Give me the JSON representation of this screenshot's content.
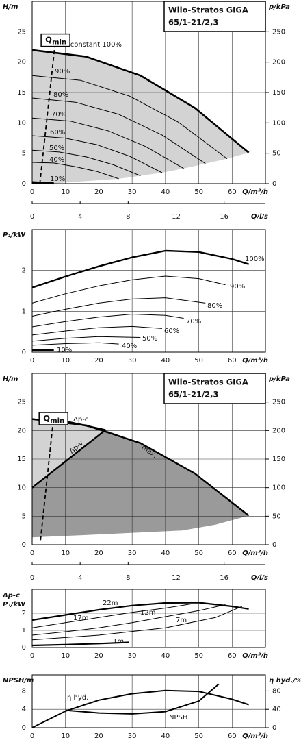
{
  "chart_data": [
    {
      "type": "line",
      "title_lines": [
        "Wilo-Stratos GIGA",
        "65/1-21/2,3"
      ],
      "y_label": "H/m",
      "y2_label": "p/kPa",
      "x_label": "Q/m³/h",
      "x2_label": "Q/l/s",
      "xlim": [
        0,
        70
      ],
      "xticks": [
        0,
        10,
        20,
        30,
        40,
        50,
        60
      ],
      "x2lim": [
        0,
        19.44
      ],
      "x2ticks": [
        0,
        4,
        8,
        12,
        16
      ],
      "ylim": [
        0,
        30
      ],
      "yticks": [
        0,
        5,
        10,
        15,
        20,
        25
      ],
      "y2lim": [
        0,
        300
      ],
      "y2ticks": [
        0,
        50,
        100,
        150,
        200,
        250
      ],
      "grid": true,
      "color": "#000000",
      "region_color": "#d3d3d3",
      "qmin": {
        "label": "Q",
        "sub": "min",
        "x": [
          2.3,
          6.8
        ],
        "values": [
          0,
          22.6
        ]
      },
      "series": [
        {
          "name": "n=constant 100%",
          "x": [
            0,
            16.25,
            32.5,
            48.75,
            65
          ],
          "values": [
            22,
            20.9,
            17.8,
            12.5,
            5.1
          ]
        },
        {
          "name": "90%",
          "x": [
            0,
            14.6,
            29.3,
            43.9,
            58.5
          ],
          "values": [
            17.8,
            17.0,
            14.4,
            10.1,
            4.1
          ]
        },
        {
          "name": "80%",
          "x": [
            0,
            13,
            26,
            39,
            52
          ],
          "values": [
            14.1,
            13.4,
            11.4,
            8.0,
            3.3
          ]
        },
        {
          "name": "70%",
          "x": [
            0,
            11.4,
            22.8,
            34.1,
            45.5
          ],
          "values": [
            10.8,
            10.3,
            8.7,
            6.1,
            2.5
          ]
        },
        {
          "name": "60%",
          "x": [
            0,
            9.8,
            19.5,
            29.3,
            39
          ],
          "values": [
            7.9,
            7.5,
            6.4,
            4.5,
            1.8
          ]
        },
        {
          "name": "50%",
          "x": [
            0,
            8.1,
            16.3,
            24.4,
            32.5
          ],
          "values": [
            5.5,
            5.2,
            4.4,
            3.1,
            1.3
          ]
        },
        {
          "name": "40%",
          "x": [
            0,
            6.5,
            13,
            19.5,
            26
          ],
          "values": [
            3.5,
            3.4,
            2.8,
            2.0,
            0.8
          ]
        },
        {
          "name": "10%",
          "x": [
            0,
            6.5
          ],
          "values": [
            0.22,
            0.05
          ]
        }
      ]
    },
    {
      "type": "line",
      "y_label": "P₁/kW",
      "x_label": "Q/m³/h",
      "xlim": [
        0,
        70
      ],
      "xticks": [
        0,
        10,
        20,
        30,
        40,
        50,
        60
      ],
      "ylim": [
        0,
        3
      ],
      "yticks": [
        0,
        1,
        2
      ],
      "grid": true,
      "color": "#000000",
      "series": [
        {
          "name": "100%",
          "x": [
            0,
            10,
            20,
            30,
            40,
            50,
            60,
            65
          ],
          "values": [
            1.58,
            1.85,
            2.1,
            2.32,
            2.48,
            2.45,
            2.28,
            2.15
          ]
        },
        {
          "name": "90%",
          "x": [
            0,
            10,
            20,
            30,
            40,
            50,
            58
          ],
          "values": [
            1.2,
            1.43,
            1.62,
            1.77,
            1.86,
            1.8,
            1.65
          ]
        },
        {
          "name": "80%",
          "x": [
            0,
            10,
            20,
            30,
            40,
            52
          ],
          "values": [
            0.88,
            1.05,
            1.2,
            1.3,
            1.33,
            1.2
          ]
        },
        {
          "name": "70%",
          "x": [
            0,
            10,
            20,
            30,
            40,
            45.5
          ],
          "values": [
            0.62,
            0.75,
            0.86,
            0.93,
            0.9,
            0.83
          ]
        },
        {
          "name": "60%",
          "x": [
            0,
            10,
            20,
            30,
            39
          ],
          "values": [
            0.42,
            0.52,
            0.6,
            0.63,
            0.58
          ]
        },
        {
          "name": "50%",
          "x": [
            0,
            10,
            20,
            32.5
          ],
          "values": [
            0.27,
            0.34,
            0.38,
            0.36
          ]
        },
        {
          "name": "40%",
          "x": [
            0,
            10,
            20,
            26
          ],
          "values": [
            0.17,
            0.21,
            0.23,
            0.2
          ]
        },
        {
          "name": "10%",
          "x": [
            0,
            6.5
          ],
          "values": [
            0.05,
            0.05
          ]
        }
      ]
    },
    {
      "type": "line",
      "title_lines": [
        "Wilo-Stratos GIGA",
        "65/1-21/2,3"
      ],
      "y_label": "H/m",
      "y2_label": "p/kPa",
      "x_label": "Q/m³/h",
      "x2_label": "Q/l/s",
      "xlim": [
        0,
        70
      ],
      "xticks": [
        0,
        10,
        20,
        30,
        40,
        50,
        60
      ],
      "x2lim": [
        0,
        19.44
      ],
      "x2ticks": [
        0,
        4,
        8,
        12,
        16
      ],
      "ylim": [
        0,
        30
      ],
      "yticks": [
        0,
        5,
        10,
        15,
        20,
        25
      ],
      "y2lim": [
        0,
        300
      ],
      "y2ticks": [
        0,
        50,
        100,
        150,
        200,
        250
      ],
      "grid": true,
      "color": "#000000",
      "region_color": "#d3d3d3",
      "region2_color": "#9a9a9a",
      "qmin": {
        "label": "Q",
        "sub": "min",
        "x": [
          2.5,
          6.2
        ],
        "values": [
          0.8,
          21
        ]
      },
      "lower_limit": {
        "x": [
          0,
          20,
          45,
          55,
          65
        ],
        "values": [
          1.3,
          1.8,
          2.5,
          3.5,
          5.1
        ]
      },
      "series": [
        {
          "name": "max.",
          "x": [
            0,
            16.25,
            32.5,
            48.75,
            65
          ],
          "values": [
            22,
            20.9,
            17.8,
            12.5,
            5.1
          ]
        },
        {
          "name": "Δp-c",
          "x": [
            0,
            11,
            22
          ],
          "values": [
            22,
            21.5,
            20.1
          ]
        },
        {
          "name": "Δp-v",
          "x": [
            0,
            22
          ],
          "values": [
            10,
            20.1
          ]
        }
      ]
    },
    {
      "type": "line",
      "y_label_top": "Δp-c",
      "y_label": "P₁/kW",
      "x_label": "Q/m³/h",
      "xlim": [
        0,
        70
      ],
      "xticks": [
        0,
        10,
        20,
        30,
        40,
        50,
        60
      ],
      "ylim": [
        0,
        3.4
      ],
      "yticks": [
        0,
        1,
        2
      ],
      "grid": true,
      "color": "#000000",
      "series": [
        {
          "name": "22m",
          "x": [
            0,
            10,
            20,
            30,
            40,
            50,
            60,
            65
          ],
          "values": [
            1.6,
            1.9,
            2.2,
            2.45,
            2.6,
            2.62,
            2.4,
            2.25
          ]
        },
        {
          "name": "17m",
          "x": [
            0,
            10,
            20,
            30,
            40,
            48
          ],
          "values": [
            1.15,
            1.45,
            1.75,
            2.05,
            2.3,
            2.55
          ]
        },
        {
          "name": "12m",
          "x": [
            0,
            10,
            20,
            30,
            40,
            50,
            58
          ],
          "values": [
            0.72,
            0.92,
            1.15,
            1.45,
            1.8,
            2.15,
            2.5
          ]
        },
        {
          "name": "7m",
          "x": [
            0,
            20,
            40,
            55,
            63
          ],
          "values": [
            0.45,
            0.72,
            1.15,
            1.75,
            2.4
          ]
        },
        {
          "name": "1m",
          "x": [
            0,
            10,
            20,
            29
          ],
          "values": [
            0.12,
            0.17,
            0.23,
            0.3
          ]
        }
      ]
    },
    {
      "type": "line",
      "y_label": "NPSH/m",
      "y2_label": "η hyd./%",
      "x_label": "Q/m³/h",
      "xlim": [
        0,
        70
      ],
      "xticks": [
        0,
        10,
        20,
        30,
        40,
        50,
        60
      ],
      "ylim": [
        0,
        11.5
      ],
      "yticks": [
        0,
        4,
        8
      ],
      "y2lim": [
        0,
        115
      ],
      "y2ticks": [
        0,
        40,
        80
      ],
      "grid": true,
      "color": "#000000",
      "series": [
        {
          "name": "η hyd.",
          "axis": "y2",
          "x": [
            0,
            10,
            20,
            30,
            40,
            50,
            60,
            65
          ],
          "values": [
            0,
            36,
            60,
            74,
            81,
            79,
            62,
            50
          ]
        },
        {
          "name": "NPSH",
          "x": [
            10,
            20,
            30,
            40,
            50,
            56
          ],
          "values": [
            3.8,
            3.2,
            3.0,
            3.5,
            5.8,
            9.5
          ]
        }
      ]
    }
  ]
}
